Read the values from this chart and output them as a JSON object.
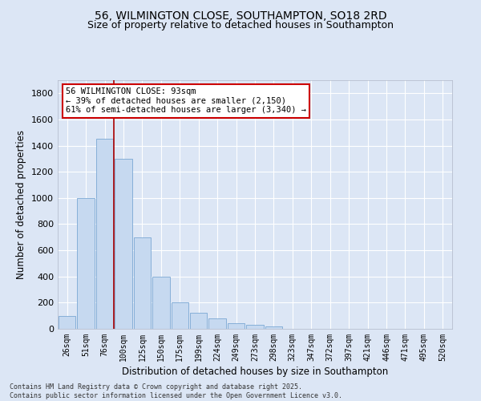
{
  "title_line1": "56, WILMINGTON CLOSE, SOUTHAMPTON, SO18 2RD",
  "title_line2": "Size of property relative to detached houses in Southampton",
  "xlabel": "Distribution of detached houses by size in Southampton",
  "ylabel": "Number of detached properties",
  "categories": [
    "26sqm",
    "51sqm",
    "76sqm",
    "100sqm",
    "125sqm",
    "150sqm",
    "175sqm",
    "199sqm",
    "224sqm",
    "249sqm",
    "273sqm",
    "298sqm",
    "323sqm",
    "347sqm",
    "372sqm",
    "397sqm",
    "421sqm",
    "446sqm",
    "471sqm",
    "495sqm",
    "520sqm"
  ],
  "values": [
    100,
    1000,
    1450,
    1300,
    700,
    400,
    200,
    120,
    80,
    40,
    30,
    20,
    0,
    0,
    0,
    0,
    0,
    0,
    0,
    0,
    0
  ],
  "bar_color": "#c6d9f0",
  "bar_edge_color": "#7ba7d4",
  "vline_color": "#aa0000",
  "annotation_text": "56 WILMINGTON CLOSE: 93sqm\n← 39% of detached houses are smaller (2,150)\n61% of semi-detached houses are larger (3,340) →",
  "annotation_box_color": "#ffffff",
  "annotation_box_edge": "#cc0000",
  "ylim": [
    0,
    1900
  ],
  "yticks": [
    0,
    200,
    400,
    600,
    800,
    1000,
    1200,
    1400,
    1600,
    1800
  ],
  "background_color": "#dce6f5",
  "plot_background": "#dce6f5",
  "grid_color": "#ffffff",
  "footer_line1": "Contains HM Land Registry data © Crown copyright and database right 2025.",
  "footer_line2": "Contains public sector information licensed under the Open Government Licence v3.0.",
  "title_fontsize": 10,
  "subtitle_fontsize": 9,
  "tick_fontsize": 7,
  "label_fontsize": 8.5
}
